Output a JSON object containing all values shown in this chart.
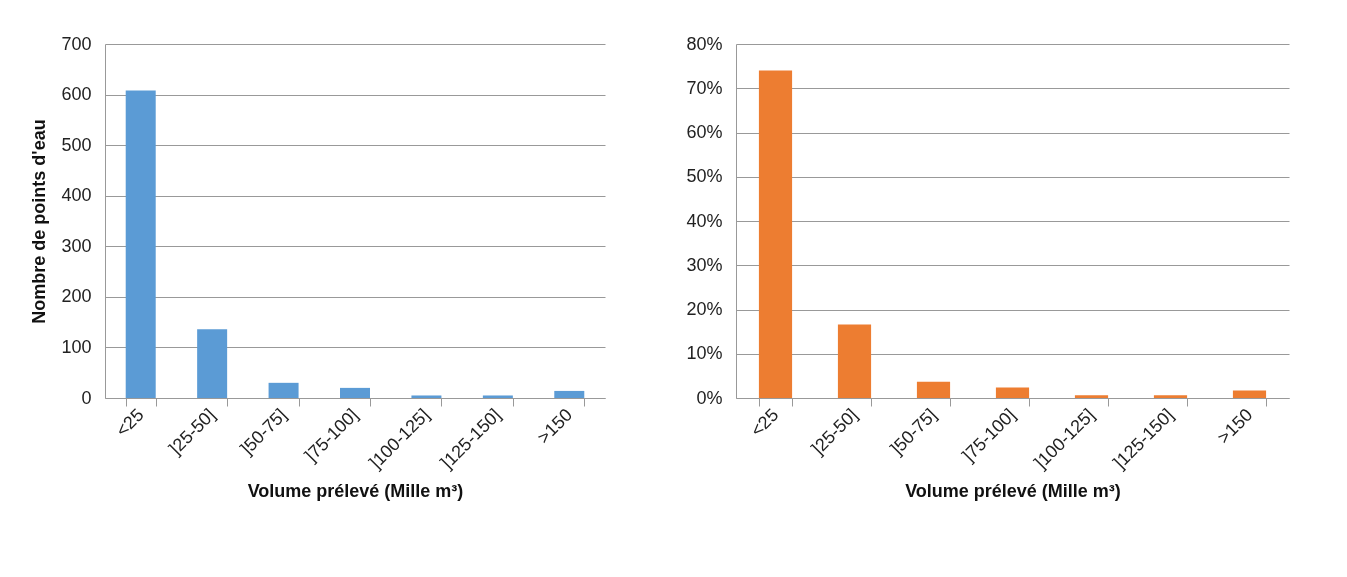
{
  "chart_data": [
    {
      "type": "bar",
      "categories": [
        "<25",
        "]25-50]",
        "]50-75]",
        "]75-100]",
        "]100-125]",
        "]125-150]",
        ">150"
      ],
      "values": [
        608,
        136,
        30,
        20,
        5,
        5,
        14
      ],
      "color": "#5b9bd5",
      "ylim": [
        0,
        700
      ],
      "yticks": [
        0,
        100,
        200,
        300,
        400,
        500,
        600,
        700
      ],
      "ylabel": "Nombre de points d'eau",
      "xlabel": "Volume prélevé (Mille m³)",
      "grid": "y"
    },
    {
      "type": "bar",
      "categories": [
        "<25",
        "]25-50]",
        "]50-75]",
        "]75-100]",
        "]100-125]",
        "]125-150]",
        ">150"
      ],
      "values": [
        74,
        16.6,
        3.7,
        2.4,
        0.6,
        0.6,
        1.7
      ],
      "color": "#ed7d31",
      "ylim": [
        0,
        80
      ],
      "yticks": [
        {
          "value": 0,
          "label": "0%"
        },
        {
          "value": 10,
          "label": "10%"
        },
        {
          "value": 20,
          "label": "20%"
        },
        {
          "value": 30,
          "label": "30%"
        },
        {
          "value": 40,
          "label": "40%"
        },
        {
          "value": 50,
          "label": "50%"
        },
        {
          "value": 60,
          "label": "60%"
        },
        {
          "value": 70,
          "label": "70%"
        },
        {
          "value": 80,
          "label": "80%"
        }
      ],
      "xlabel": "Volume prélevé (Mille m³)",
      "grid": "y"
    }
  ]
}
